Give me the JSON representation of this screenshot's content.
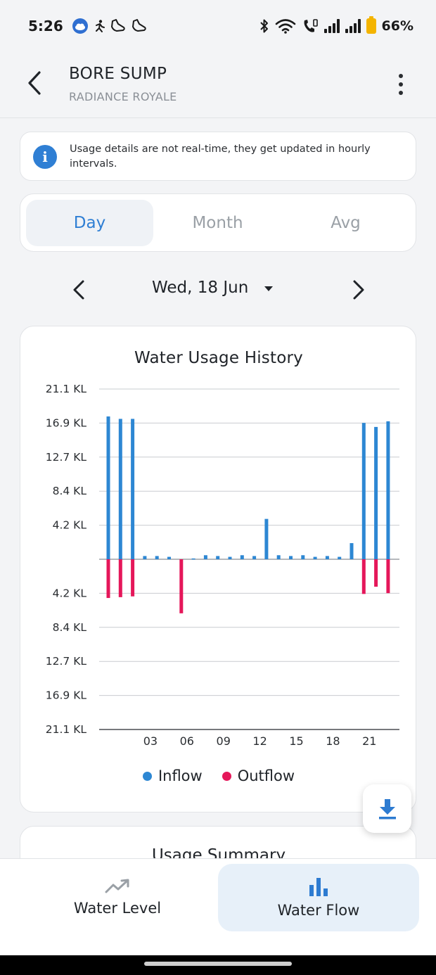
{
  "status_bar": {
    "time": "5:26",
    "battery_percent": "66%",
    "battery_level": 0.66,
    "left_icons": [
      "weather-icon",
      "activity-icon",
      "shoe-icon",
      "shoe-icon"
    ],
    "right_icons": [
      "bluetooth-icon",
      "wifi-icon",
      "wifi-calling-icon",
      "signal-icon",
      "signal-icon",
      "battery-icon"
    ]
  },
  "app_bar": {
    "title": "BORE SUMP",
    "subtitle": "RADIANCE ROYALE",
    "back_icon": "back-arrow-icon",
    "menu_icon": "more-vertical-icon"
  },
  "info_banner": {
    "icon": "info-icon",
    "text": "Usage details are not real-time, they get updated in hourly intervals."
  },
  "period_tabs": [
    {
      "label": "Day",
      "active": true
    },
    {
      "label": "Month",
      "active": false
    },
    {
      "label": "Avg",
      "active": false
    }
  ],
  "date_nav": {
    "label": "Wed, 18 Jun",
    "prev_icon": "chevron-left-icon",
    "next_icon": "chevron-right-icon",
    "dropdown_icon": "caret-down-icon"
  },
  "chart_data": {
    "type": "bar",
    "title": "Water Usage History",
    "y_unit": "KL",
    "y_ticks_positive": [
      "21.1 KL",
      "16.9 KL",
      "12.7 KL",
      "8.4 KL",
      "4.2 KL"
    ],
    "y_ticks_negative": [
      "4.2 KL",
      "8.4 KL",
      "12.7 KL",
      "16.9 KL",
      "21.1 KL"
    ],
    "ylim": [
      -21.1,
      21.1
    ],
    "x_ticks": [
      {
        "hour": 3,
        "label": "03"
      },
      {
        "hour": 6,
        "label": "06"
      },
      {
        "hour": 9,
        "label": "09"
      },
      {
        "hour": 12,
        "label": "12"
      },
      {
        "hour": 15,
        "label": "15"
      },
      {
        "hour": 18,
        "label": "18"
      },
      {
        "hour": 21,
        "label": "21"
      }
    ],
    "x_hours": [
      0,
      1,
      2,
      3,
      4,
      5,
      6,
      7,
      8,
      9,
      10,
      11,
      12,
      13,
      14,
      15,
      16,
      17,
      18,
      19,
      20,
      21,
      22,
      23
    ],
    "series": [
      {
        "name": "Inflow",
        "color": "#2d87d3",
        "values": [
          17.7,
          17.4,
          17.4,
          0.4,
          0.4,
          0.3,
          0,
          0.1,
          0.5,
          0.4,
          0.3,
          0.5,
          0.4,
          5.0,
          0.5,
          0.4,
          0.5,
          0.3,
          0.4,
          0.3,
          2.0,
          16.9,
          16.4,
          17.1
        ]
      },
      {
        "name": "Outflow",
        "color": "#e5175a",
        "values": [
          -4.8,
          -4.7,
          -4.6,
          0,
          0,
          0,
          -6.7,
          0,
          0,
          0,
          0,
          0,
          0,
          0,
          0,
          0,
          0,
          0,
          0,
          0,
          0,
          -4.3,
          -3.4,
          -4.2
        ]
      }
    ],
    "legend_position": "bottom-center",
    "grid": true
  },
  "download_button": {
    "icon": "download-icon"
  },
  "summary": {
    "title": "Usage Summary"
  },
  "bottom_nav": [
    {
      "label": "Water Level",
      "icon": "trending-up-icon",
      "active": false
    },
    {
      "label": "Water Flow",
      "icon": "bar-chart-icon",
      "active": true
    }
  ]
}
